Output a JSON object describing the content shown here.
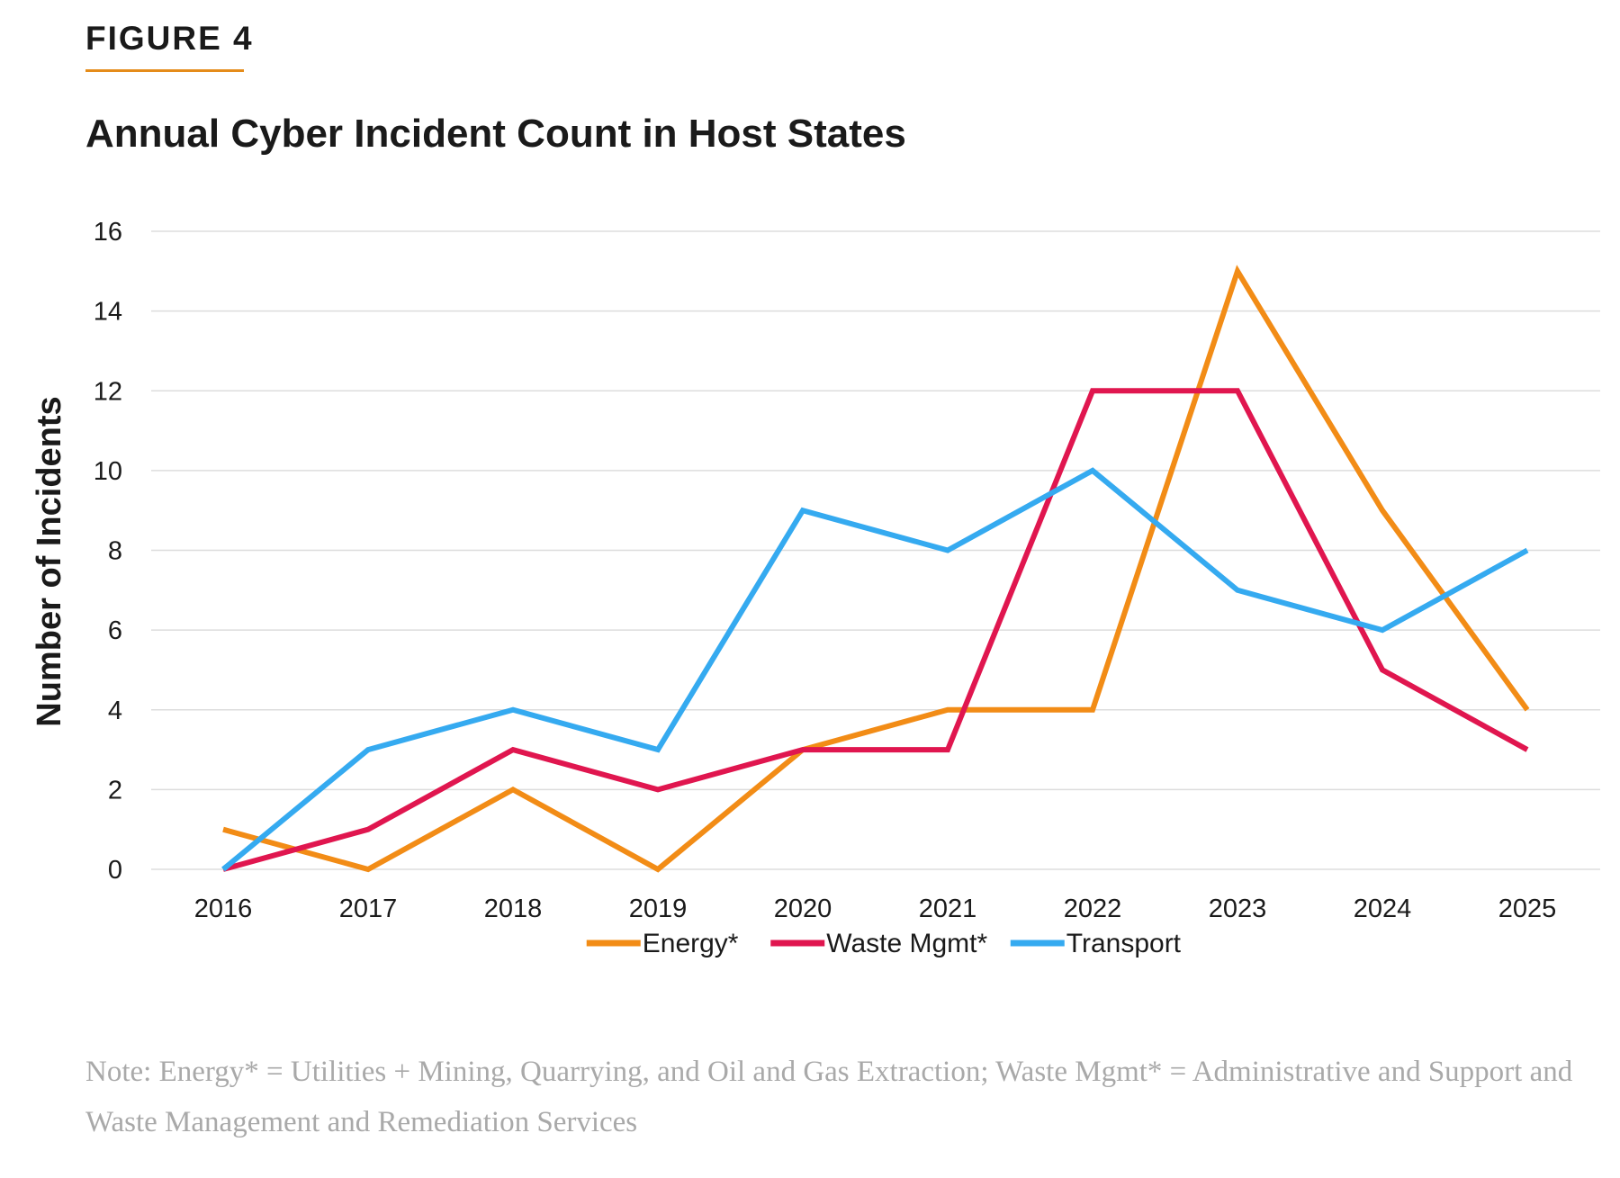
{
  "figure_label": "FIGURE 4",
  "note": "Note: Energy* = Utilities + Mining, Quarrying, and Oil and Gas Extraction; Waste Mgmt* = Administrative and Support and Waste Management and Remediation Services",
  "colors": {
    "accent": "#e58c1a",
    "gridline": "#dddddd",
    "note_text": "#a9a9a9"
  },
  "chart_data": {
    "type": "line",
    "title": "Annual Cyber Incident Count in Host States",
    "xlabel": "",
    "ylabel": "Number of Incidents",
    "x": [
      "2016",
      "2017",
      "2018",
      "2019",
      "2020",
      "2021",
      "2022",
      "2023",
      "2024",
      "2025"
    ],
    "ylim": [
      0,
      16
    ],
    "yticks": [
      "0",
      "2",
      "4",
      "6",
      "8",
      "10",
      "12",
      "14",
      "16"
    ],
    "grid": true,
    "legend_position": "bottom",
    "series": [
      {
        "name": "Energy*",
        "color": "#f28c16",
        "values": [
          1,
          0,
          2,
          0,
          3,
          4,
          4,
          15,
          9,
          4
        ]
      },
      {
        "name": "Waste Mgmt*",
        "color": "#e0164f",
        "values": [
          0,
          1,
          3,
          2,
          3,
          3,
          12,
          12,
          5,
          3
        ]
      },
      {
        "name": "Transport",
        "color": "#35aaf0",
        "values": [
          0,
          3,
          4,
          3,
          9,
          8,
          10,
          7,
          6,
          8
        ]
      }
    ]
  }
}
